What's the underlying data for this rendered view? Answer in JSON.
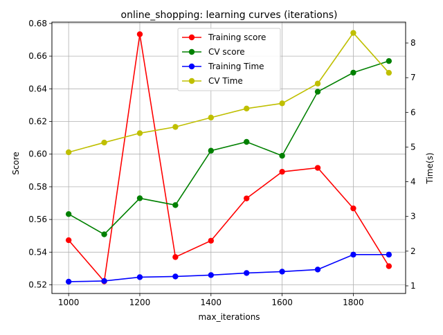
{
  "chart_data": {
    "type": "line",
    "title": "online_shopping: learning curves (iterations)",
    "xlabel": "max_iterations",
    "ylabel": "Score",
    "ylabel_right": "Time(s)",
    "x": [
      1000,
      1100,
      1200,
      1300,
      1400,
      1500,
      1600,
      1700,
      1800,
      1900
    ],
    "xlim": [
      953,
      1947
    ],
    "xticks": [
      "1000",
      "1200",
      "1400",
      "1600",
      "1800"
    ],
    "ylim": [
      0.5147,
      0.6808
    ],
    "yticks": [
      "0.52",
      "0.54",
      "0.56",
      "0.58",
      "0.60",
      "0.62",
      "0.64",
      "0.66",
      "0.68"
    ],
    "y2lim": [
      0.78,
      8.6
    ],
    "y2ticks": [
      "1",
      "2",
      "3",
      "4",
      "5",
      "6",
      "7",
      "8"
    ],
    "grid": true,
    "legend_position": "top-center",
    "series": [
      {
        "name": "Training score",
        "axis": "left",
        "color": "#ff0000",
        "values": [
          0.5473,
          0.5221,
          0.6734,
          0.537,
          0.547,
          0.5729,
          0.5892,
          0.5916,
          0.5668,
          0.5314
        ]
      },
      {
        "name": "CV score",
        "axis": "left",
        "color": "#008000",
        "values": [
          0.5633,
          0.5509,
          0.573,
          0.5688,
          0.6021,
          0.6075,
          0.599,
          0.6382,
          0.6499,
          0.657
        ]
      },
      {
        "name": "Training Time",
        "axis": "right",
        "color": "#0000ff",
        "values": [
          1.12,
          1.14,
          1.25,
          1.27,
          1.31,
          1.37,
          1.41,
          1.47,
          1.9,
          1.9
        ]
      },
      {
        "name": "CV Time",
        "axis": "right",
        "color": "#bfbf00",
        "values": [
          4.85,
          5.13,
          5.4,
          5.58,
          5.85,
          6.11,
          6.26,
          6.83,
          8.29,
          7.14
        ]
      }
    ]
  }
}
